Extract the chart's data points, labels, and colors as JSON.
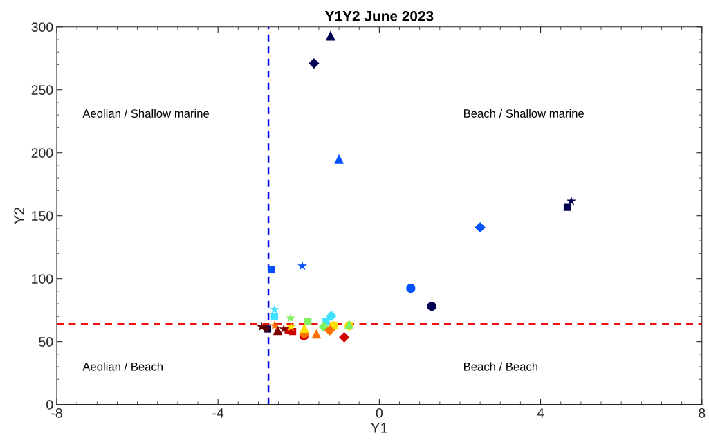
{
  "chart_data": {
    "type": "scatter",
    "title": "Y1Y2 June 2023",
    "xlabel": "Y1",
    "ylabel": "Y2",
    "xlim": [
      -8,
      8
    ],
    "xticks": [
      -8,
      -4,
      0,
      4,
      8
    ],
    "ylim": [
      0,
      300
    ],
    "yticks": [
      0,
      50,
      100,
      150,
      200,
      250,
      300
    ],
    "grid": false,
    "legend": false,
    "ref_lines": [
      {
        "axis": "x",
        "value": -2.75,
        "color": "#0000ee",
        "line_style": "dashed"
      },
      {
        "axis": "y",
        "value": 64,
        "color": "#ee1111",
        "line_style": "dashed"
      }
    ],
    "annotations": [
      "Aeolian / Shallow marine",
      "Beach / Shallow marine",
      "Aeolian / Beach",
      "Beach / Beach"
    ],
    "series": [
      {
        "marker": "circle",
        "x": [
          0.78,
          1.3,
          -1.13,
          -0.75,
          -1.87,
          -1.86
        ],
        "values": [
          92.3,
          78,
          62.6,
          62.5,
          54.5,
          56.5
        ],
        "colors": [
          "#0050ff",
          "#000050",
          "#ffe000",
          "#ffe000",
          "#d00000",
          "#ff7000"
        ]
      },
      {
        "marker": "square",
        "x": [
          4.66,
          -2.68,
          -2.6,
          -1.77,
          -1.32,
          -2.15,
          -2.26,
          -2.77
        ],
        "values": [
          156.6,
          107,
          70,
          66,
          66.3,
          58,
          59,
          60
        ],
        "colors": [
          "#000050",
          "#0050ff",
          "#40e0ff",
          "#80f060",
          "#40e0ff",
          "#d00000",
          "#d00000",
          "#000050"
        ]
      },
      {
        "marker": "triangle",
        "x": [
          -1.21,
          -1.0,
          -0.75,
          -1.56,
          -1.86,
          -2.52
        ],
        "values": [
          293,
          195,
          63.7,
          56.2,
          60.8,
          59
        ],
        "colors": [
          "#000050",
          "#0050ff",
          "#80f060",
          "#ff7000",
          "#ffe000",
          "#800000"
        ]
      },
      {
        "marker": "diamond",
        "x": [
          -1.62,
          2.5,
          -1.19,
          -1.38,
          -1.23,
          -0.87
        ],
        "values": [
          271,
          140.7,
          70.3,
          61.7,
          59,
          53.5
        ],
        "colors": [
          "#000050",
          "#0050ff",
          "#40e0ff",
          "#80f060",
          "#ff7000",
          "#d00000"
        ]
      },
      {
        "marker": "star",
        "x": [
          4.76,
          -1.91,
          -2.6,
          -2.2,
          -2.19,
          -2.6,
          -2.37,
          -2.92,
          -2.8
        ],
        "values": [
          161.5,
          110,
          75.4,
          68.7,
          61.7,
          62.6,
          60,
          61.7,
          60
        ],
        "colors": [
          "#000050",
          "#0050ff",
          "#40e0ff",
          "#80f060",
          "#ffe000",
          "#ff7000",
          "#800000",
          "#600000",
          "#600000"
        ]
      }
    ]
  }
}
